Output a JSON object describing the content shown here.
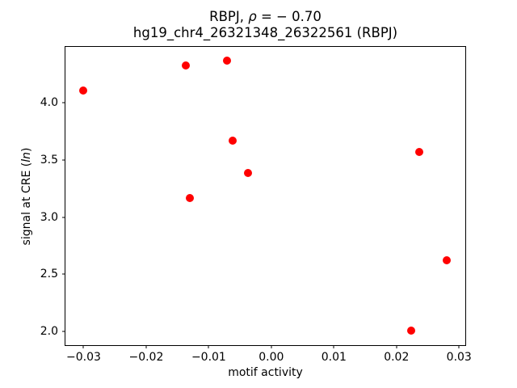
{
  "title": {
    "prefix": "RBPJ, ",
    "rho_symbol": "ρ",
    "rho_value": " = − 0.70",
    "line2": "hg19_chr4_26321348_26322561 (RBPJ)"
  },
  "ylabel_parts": {
    "prefix": "signal at CRE (",
    "italic": "ln",
    "suffix": ")"
  },
  "chart_data": {
    "type": "scatter",
    "title": "RBPJ, ρ = − 0.70\nhg19_chr4_26321348_26322561 (RBPJ)",
    "xlabel": "motif activity",
    "ylabel": "signal at CRE (ln)",
    "rho": -0.7,
    "xlim": [
      -0.0329,
      0.031
    ],
    "ylim": [
      1.881,
      4.49
    ],
    "x_ticks": [
      -0.03,
      -0.02,
      -0.01,
      0.0,
      0.01,
      0.02,
      0.03
    ],
    "x_tick_labels": [
      "−0.03",
      "−0.02",
      "−0.01",
      "0.00",
      "0.01",
      "0.02",
      "0.03"
    ],
    "y_ticks": [
      2.0,
      2.5,
      3.0,
      3.5,
      4.0
    ],
    "y_tick_labels": [
      "2.0",
      "2.5",
      "3.0",
      "3.5",
      "4.0"
    ],
    "grid": false,
    "legend": null,
    "marker": "circle",
    "marker_color": "#ff0000",
    "points": [
      {
        "x": -0.03,
        "y": 4.11
      },
      {
        "x": -0.0137,
        "y": 4.33
      },
      {
        "x": -0.0071,
        "y": 4.37
      },
      {
        "x": -0.013,
        "y": 3.17
      },
      {
        "x": -0.0062,
        "y": 3.67
      },
      {
        "x": -0.0037,
        "y": 3.39
      },
      {
        "x": 0.0236,
        "y": 3.57
      },
      {
        "x": 0.0223,
        "y": 2.01
      },
      {
        "x": 0.028,
        "y": 2.62
      }
    ]
  }
}
